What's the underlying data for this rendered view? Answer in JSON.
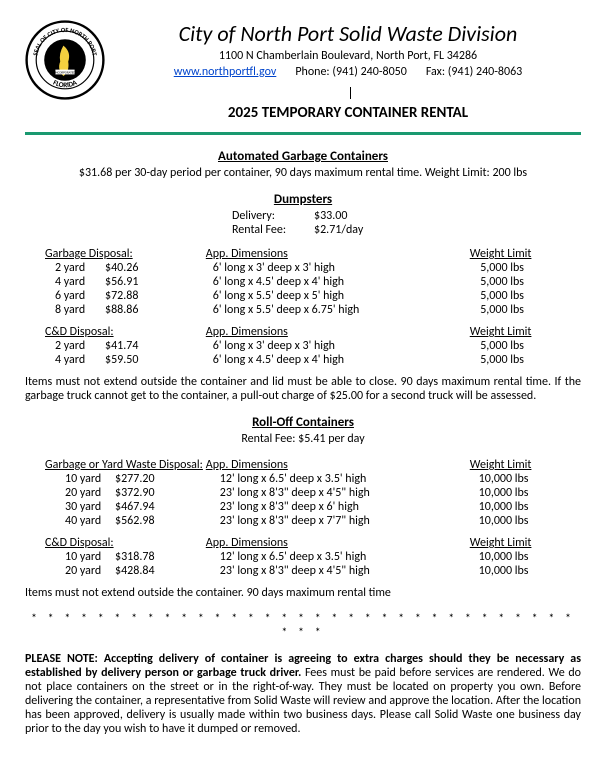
{
  "header": {
    "title": "City of North Port Solid Waste Division",
    "address": "1100 N Chamberlain Boulevard, North Port, FL 34286",
    "website": "www.northportfl.gov",
    "phone_label": "Phone: (941) 240-8050",
    "fax_label": "Fax: (941) 240-8063",
    "subtitle": "2025 TEMPORARY CONTAINER RENTAL"
  },
  "automated": {
    "heading": "Automated Garbage Containers",
    "sub": "$31.68 per 30-day period per container, 90 days maximum rental time.  Weight Limit: 200 lbs"
  },
  "dumpsters": {
    "heading": "Dumpsters",
    "delivery_label": "Delivery:",
    "delivery_value": "$33.00",
    "rental_label": "Rental Fee:",
    "rental_value": "$2.71/day",
    "h1": "Garbage Disposal:",
    "h2": "App. Dimensions",
    "h3": "Weight Limit",
    "rows": [
      {
        "size": "2 yard",
        "price": "$40.26",
        "dim": "6' long x 3' deep x 3' high",
        "wt": "5,000 lbs"
      },
      {
        "size": "4 yard",
        "price": "$56.91",
        "dim": "6' long x 4.5' deep x 4' high",
        "wt": "5,000 lbs"
      },
      {
        "size": "6 yard",
        "price": "$72.88",
        "dim": "6' long x 5.5' deep x 5' high",
        "wt": "5,000 lbs"
      },
      {
        "size": "8 yard",
        "price": "$88.86",
        "dim": "6' long x 5.5' deep x 6.75' high",
        "wt": "5,000 lbs"
      }
    ],
    "cd_h1": "C&D Disposal:",
    "cd_rows": [
      {
        "size": "2 yard",
        "price": "$41.74",
        "dim": "6' long x 3' deep x 3' high",
        "wt": "5,000 lbs"
      },
      {
        "size": "4 yard",
        "price": "$59.50",
        "dim": "6' long x 4.5' deep x 4' high",
        "wt": "5,000 lbs"
      }
    ],
    "note": "Items must not extend outside the container and lid must be able to close.  90 days maximum rental time.  If the garbage truck cannot get to the container, a pull-out charge of $25.00 for a second truck will be assessed."
  },
  "rolloff": {
    "heading": "Roll-Off Containers",
    "sub": "Rental Fee:  $5.41 per day",
    "h1": "Garbage or Yard Waste Disposal:",
    "h2": "App. Dimensions",
    "h3": "Weight Limit",
    "rows": [
      {
        "size": "10 yard",
        "price": "$277.20",
        "dim": "12' long x 6.5' deep x 3.5' high",
        "wt": "10,000 lbs"
      },
      {
        "size": "20 yard",
        "price": "$372.90",
        "dim": "23' long x 8'3\" deep x 4'5\" high",
        "wt": "10,000 lbs"
      },
      {
        "size": "30 yard",
        "price": "$467.94",
        "dim": "23' long x 8'3\" deep x 6' high",
        "wt": "10,000 lbs"
      },
      {
        "size": "40 yard",
        "price": "$562.98",
        "dim": "23' long x 8'3\" deep x 7'7\" high",
        "wt": "10,000 lbs"
      }
    ],
    "cd_h1": "C&D Disposal:",
    "cd_rows": [
      {
        "size": "10 yard",
        "price": "$318.78",
        "dim": "12' long x 6.5' deep x 3.5' high",
        "wt": "10,000 lbs"
      },
      {
        "size": "20 yard",
        "price": "$428.84",
        "dim": "23' long x 8'3\" deep x 4'5\" high",
        "wt": "10,000 lbs"
      }
    ],
    "note": "Items must not extend outside the container.  90 days maximum rental time"
  },
  "stars": "* * * * * * * * * * * * * * * * * * * * * * * * * * * * * * * * * * * *",
  "please_bold": "PLEASE NOTE: Accepting delivery of container is agreeing to extra charges should they be necessary as established by delivery person or garbage truck driver.",
  "please_rest": "  Fees must be paid before services are rendered.  We do not place containers on the street or in the right-of-way.  They must be located on property you own.  Before delivering the container, a representative from Solid Waste will review and approve the location.  After the location has been approved, delivery is usually made within two business days.  Please call Solid Waste one business day prior to the day you wish to have it dumped or removed."
}
